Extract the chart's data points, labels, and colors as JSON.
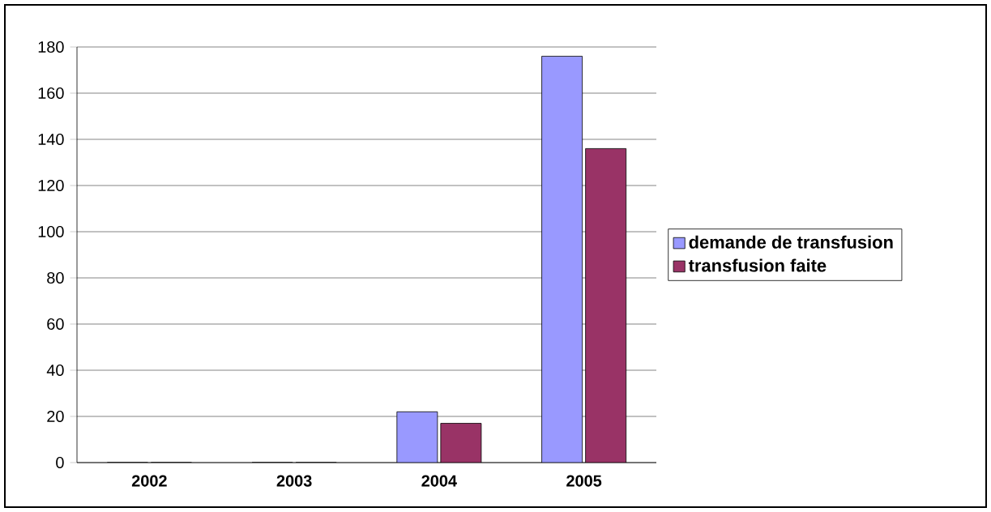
{
  "chart_data": {
    "type": "bar",
    "categories": [
      "2002",
      "2003",
      "2004",
      "2005"
    ],
    "series": [
      {
        "name": "demande de transfusion",
        "color": "#9999ff",
        "values": [
          0,
          0,
          22,
          176
        ]
      },
      {
        "name": "transfusion faite",
        "color": "#993366",
        "values": [
          0,
          0,
          17,
          136
        ]
      }
    ],
    "ylim": [
      0,
      180
    ],
    "yticks": [
      0,
      20,
      40,
      60,
      80,
      100,
      120,
      140,
      160,
      180
    ],
    "grid": "y",
    "legend": "right"
  }
}
